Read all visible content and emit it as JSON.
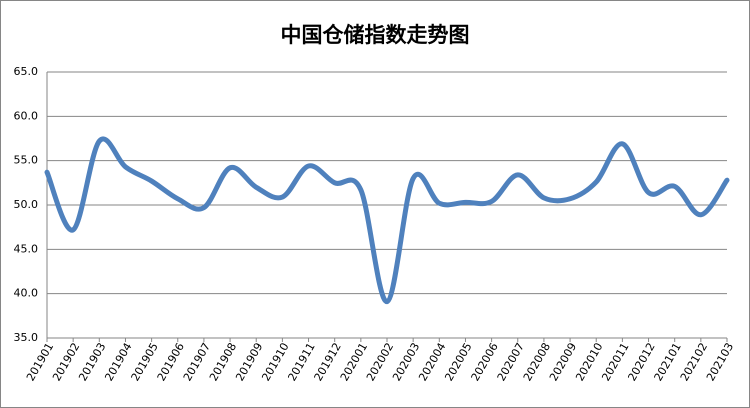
{
  "chart_data": {
    "type": "line",
    "title": "中国仓储指数走势图",
    "categories": [
      "201901",
      "201902",
      "201903",
      "201904",
      "201905",
      "201906",
      "201907",
      "201908",
      "201909",
      "201910",
      "201911",
      "201912",
      "202001",
      "202002",
      "202003",
      "202004",
      "202005",
      "202006",
      "202007",
      "202008",
      "202009",
      "202010",
      "202011",
      "202012",
      "202101",
      "202102",
      "202103"
    ],
    "values": [
      53.7,
      47.2,
      57.2,
      54.3,
      52.7,
      50.7,
      49.7,
      54.2,
      52.0,
      50.9,
      54.4,
      52.5,
      51.7,
      39.1,
      53.0,
      50.2,
      50.3,
      50.4,
      53.4,
      50.8,
      50.7,
      52.6,
      56.9,
      51.4,
      52.1,
      48.9,
      52.8
    ],
    "color": "#4f81bd",
    "ylim": [
      35,
      65
    ],
    "yticks": [
      {
        "value": 35,
        "label": "35.0"
      },
      {
        "value": 40,
        "label": "40.0"
      },
      {
        "value": 45,
        "label": "45.0"
      },
      {
        "value": 50,
        "label": "50.0"
      },
      {
        "value": 55,
        "label": "55.0"
      },
      {
        "value": 60,
        "label": "60.0"
      },
      {
        "value": 65,
        "label": "65.0"
      }
    ],
    "grid": true
  }
}
